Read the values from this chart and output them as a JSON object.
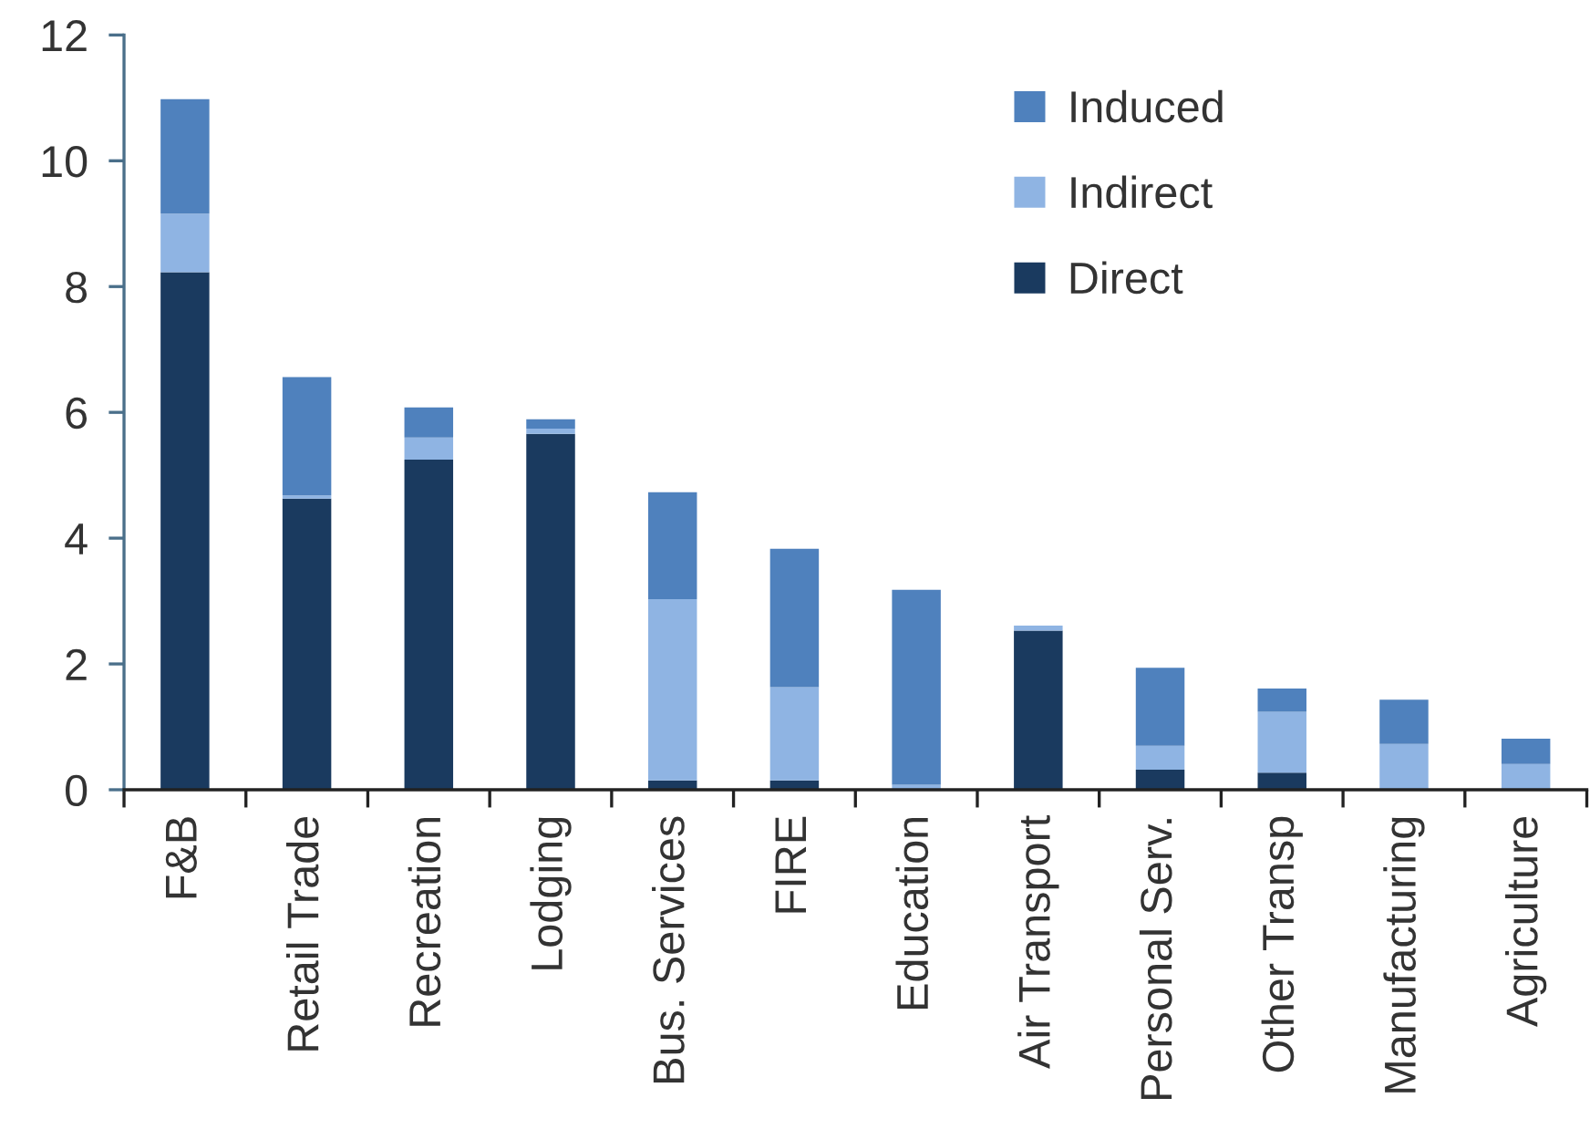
{
  "chart_data": {
    "type": "bar",
    "stacked": true,
    "categories": [
      "F&B",
      "Retail Trade",
      "Recreation",
      "Lodging",
      "Bus. Services",
      "FIRE",
      "Education",
      "Air Transport",
      "Personal Serv.",
      "Other Transp",
      "Manufacturing",
      "Agriculture"
    ],
    "series": [
      {
        "name": "Direct",
        "color": "#1a3a5f",
        "values": [
          8.23,
          4.63,
          5.25,
          5.66,
          0.15,
          0.15,
          null,
          2.53,
          0.32,
          0.27,
          null,
          null
        ]
      },
      {
        "name": "Indirect",
        "color": "#8fb4e3",
        "values": [
          0.93,
          0.05,
          0.35,
          0.08,
          2.88,
          1.48,
          0.08,
          0.08,
          0.38,
          0.97,
          0.73,
          0.41
        ]
      },
      {
        "name": "Induced",
        "color": "#4f81bd",
        "values": [
          1.82,
          1.88,
          0.48,
          0.15,
          1.7,
          2.2,
          3.1,
          null,
          1.24,
          0.37,
          0.7,
          0.4
        ]
      }
    ],
    "ylim": [
      0,
      12
    ],
    "yticks": [
      0,
      2,
      4,
      6,
      8,
      10,
      12
    ],
    "grid": false,
    "legend": "top right"
  }
}
